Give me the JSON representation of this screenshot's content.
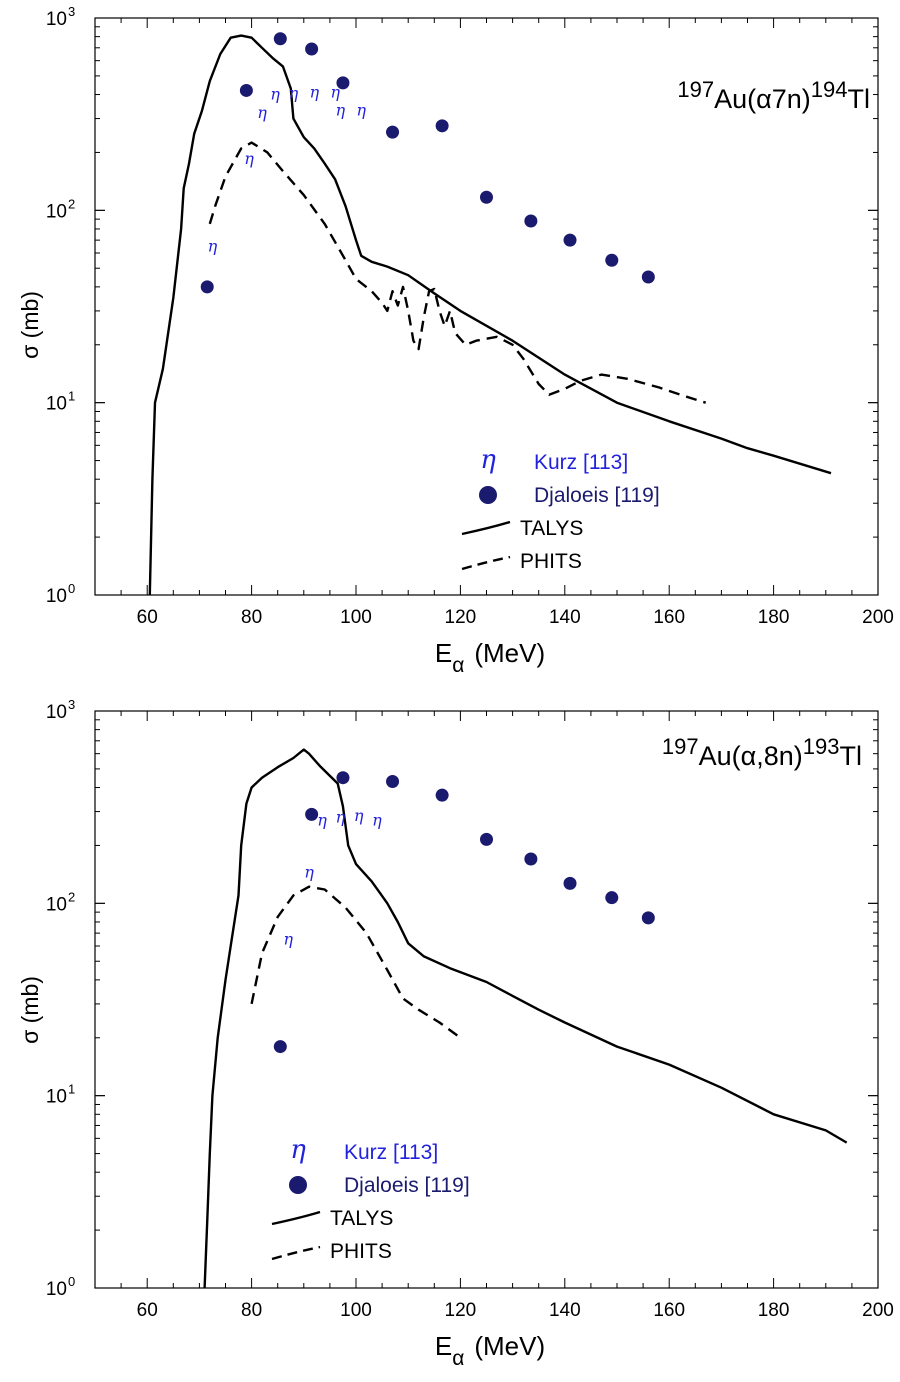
{
  "figure": {
    "xlabel": "E",
    "xlabel_sub": "α",
    "xlabel_unit": "(MeV)",
    "ylabel": "σ (mb)"
  },
  "chart_data": [
    {
      "type": "line",
      "title": {
        "pre": "197",
        "mid": "Au(α7n)",
        "post": "194",
        "tail": "Tl"
      },
      "xlabel": "E_α (MeV)",
      "ylabel": "σ (mb)",
      "xlim": [
        50,
        200
      ],
      "ylim": [
        1,
        1000
      ],
      "yscale": "log",
      "xticks": [
        "60",
        "80",
        "100",
        "120",
        "140",
        "160",
        "180",
        "200"
      ],
      "yticks": [
        {
          "base": "10",
          "exp": "0"
        },
        {
          "base": "10",
          "exp": "1"
        },
        {
          "base": "10",
          "exp": "2"
        },
        {
          "base": "10",
          "exp": "3"
        }
      ],
      "legend_position": "bottom-center",
      "legend": [
        {
          "label": "Kurz [113]",
          "marker": "η",
          "color": "#2222dd"
        },
        {
          "label": "Djaloeis [119]",
          "marker": "circle",
          "color": "#1a1a6e"
        },
        {
          "label": "TALYS",
          "style": "solid",
          "color": "#000000"
        },
        {
          "label": "PHITS",
          "style": "dashed",
          "color": "#000000"
        }
      ],
      "series": [
        {
          "name": "Kurz [113]",
          "kind": "symbol",
          "symbol": "η",
          "points": [
            [
              72.5,
              65
            ],
            [
              79.5,
              185
            ],
            [
              82,
              320
            ],
            [
              84.5,
              400
            ],
            [
              88,
              405
            ],
            [
              92,
              410
            ],
            [
              96,
              410
            ],
            [
              97,
              330
            ],
            [
              101,
              330
            ]
          ]
        },
        {
          "name": "Djaloeis [119]",
          "kind": "marker",
          "points": [
            [
              71.5,
              40
            ],
            [
              79,
              420
            ],
            [
              85.5,
              780
            ],
            [
              91.5,
              690
            ],
            [
              97.5,
              460
            ],
            [
              107,
              255
            ],
            [
              116.5,
              275
            ],
            [
              125,
              117
            ],
            [
              133.5,
              88
            ],
            [
              141,
              70
            ],
            [
              149,
              55
            ],
            [
              156,
              45
            ]
          ]
        },
        {
          "name": "TALYS",
          "kind": "line",
          "style": "solid",
          "points": [
            [
              60.5,
              1
            ],
            [
              61,
              4
            ],
            [
              61.5,
              10
            ],
            [
              63,
              15
            ],
            [
              65,
              35
            ],
            [
              66.5,
              80
            ],
            [
              67,
              130
            ],
            [
              68,
              175
            ],
            [
              69,
              250
            ],
            [
              70.5,
              330
            ],
            [
              72,
              470
            ],
            [
              74,
              650
            ],
            [
              76,
              790
            ],
            [
              78,
              810
            ],
            [
              80,
              790
            ],
            [
              82,
              700
            ],
            [
              84,
              620
            ],
            [
              86,
              560
            ],
            [
              87.5,
              430
            ],
            [
              88,
              300
            ],
            [
              90,
              240
            ],
            [
              92,
              210
            ],
            [
              94,
              175
            ],
            [
              96,
              145
            ],
            [
              98,
              105
            ],
            [
              100,
              70
            ],
            [
              101,
              58
            ],
            [
              103,
              54
            ],
            [
              106,
              51
            ],
            [
              110,
              46
            ],
            [
              115,
              37
            ],
            [
              120,
              30
            ],
            [
              130,
              21
            ],
            [
              140,
              14
            ],
            [
              150,
              10
            ],
            [
              160,
              8
            ],
            [
              170,
              6.5
            ],
            [
              175,
              5.8
            ],
            [
              180,
              5.3
            ],
            [
              191,
              4.3
            ]
          ]
        },
        {
          "name": "PHITS",
          "kind": "line",
          "style": "dashed",
          "points": [
            [
              72,
              85
            ],
            [
              73,
              105
            ],
            [
              75,
              150
            ],
            [
              78,
              210
            ],
            [
              80,
              225
            ],
            [
              83,
              200
            ],
            [
              86,
              160
            ],
            [
              90,
              120
            ],
            [
              94,
              85
            ],
            [
              98,
              55
            ],
            [
              100,
              44
            ],
            [
              103,
              38
            ],
            [
              105,
              33
            ],
            [
              106,
              30
            ],
            [
              107,
              38
            ],
            [
              108,
              32
            ],
            [
              109,
              40
            ],
            [
              110,
              30
            ],
            [
              111,
              21
            ],
            [
              112,
              19
            ],
            [
              113,
              28
            ],
            [
              114,
              38
            ],
            [
              115,
              39
            ],
            [
              116,
              30
            ],
            [
              117,
              25
            ],
            [
              118,
              30
            ],
            [
              119,
              23
            ],
            [
              121,
              20
            ],
            [
              123,
              21
            ],
            [
              127,
              22
            ],
            [
              130,
              20
            ],
            [
              132,
              17
            ],
            [
              135,
              12.5
            ],
            [
              137,
              11
            ],
            [
              140,
              11.8
            ],
            [
              143,
              13
            ],
            [
              147,
              14
            ],
            [
              152,
              13.3
            ],
            [
              158,
              12
            ],
            [
              163,
              10.8
            ],
            [
              167,
              10
            ]
          ]
        }
      ]
    },
    {
      "type": "line",
      "title": {
        "pre": "197",
        "mid": "Au(α,8n)",
        "post": "193",
        "tail": "Tl"
      },
      "xlabel": "E_α (MeV)",
      "ylabel": "σ (mb)",
      "xlim": [
        50,
        200
      ],
      "ylim": [
        1,
        1000
      ],
      "yscale": "log",
      "xticks": [
        "60",
        "80",
        "100",
        "120",
        "140",
        "160",
        "180",
        "200"
      ],
      "yticks": [
        {
          "base": "10",
          "exp": "0"
        },
        {
          "base": "10",
          "exp": "1"
        },
        {
          "base": "10",
          "exp": "2"
        },
        {
          "base": "10",
          "exp": "3"
        }
      ],
      "legend_position": "bottom-left",
      "legend": [
        {
          "label": "Kurz [113]",
          "marker": "η",
          "color": "#2222dd"
        },
        {
          "label": "Djaloeis [119]",
          "marker": "circle",
          "color": "#1a1a6e"
        },
        {
          "label": "TALYS",
          "style": "solid",
          "color": "#000000"
        },
        {
          "label": "PHITS",
          "style": "dashed",
          "color": "#000000"
        }
      ],
      "series": [
        {
          "name": "Kurz [113]",
          "kind": "symbol",
          "symbol": "η",
          "points": [
            [
              87,
              65
            ],
            [
              91,
              145
            ],
            [
              93.5,
              270
            ],
            [
              97,
              280
            ],
            [
              100.5,
              285
            ],
            [
              104,
              270
            ]
          ]
        },
        {
          "name": "Djaloeis [119]",
          "kind": "marker",
          "points": [
            [
              85.5,
              18
            ],
            [
              91.5,
              290
            ],
            [
              97.5,
              450
            ],
            [
              107,
              430
            ],
            [
              116.5,
              365
            ],
            [
              125,
              215
            ],
            [
              133.5,
              170
            ],
            [
              141,
              127
            ],
            [
              149,
              107
            ],
            [
              156,
              84
            ]
          ]
        },
        {
          "name": "TALYS",
          "kind": "line",
          "style": "solid",
          "points": [
            [
              71,
              1
            ],
            [
              71.5,
              2.2
            ],
            [
              72,
              5
            ],
            [
              72.5,
              10
            ],
            [
              73.5,
              20
            ],
            [
              75,
              40
            ],
            [
              76,
              60
            ],
            [
              77.5,
              110
            ],
            [
              78,
              200
            ],
            [
              79,
              330
            ],
            [
              80,
              400
            ],
            [
              82,
              450
            ],
            [
              85,
              510
            ],
            [
              88,
              570
            ],
            [
              90,
              630
            ],
            [
              91,
              600
            ],
            [
              93,
              520
            ],
            [
              95,
              460
            ],
            [
              96.5,
              420
            ],
            [
              97.5,
              320
            ],
            [
              98.5,
              200
            ],
            [
              100,
              160
            ],
            [
              103,
              130
            ],
            [
              106,
              100
            ],
            [
              108,
              80
            ],
            [
              110,
              62
            ],
            [
              113,
              53
            ],
            [
              118,
              46
            ],
            [
              125,
              39
            ],
            [
              130,
              33
            ],
            [
              135,
              28
            ],
            [
              140,
              24
            ],
            [
              150,
              18
            ],
            [
              160,
              14.5
            ],
            [
              170,
              11
            ],
            [
              180,
              8
            ],
            [
              190,
              6.6
            ],
            [
              194,
              5.7
            ]
          ]
        },
        {
          "name": "PHITS",
          "kind": "line",
          "style": "dashed",
          "points": [
            [
              80,
              30
            ],
            [
              82,
              55
            ],
            [
              85,
              85
            ],
            [
              88,
              110
            ],
            [
              91,
              122
            ],
            [
              94,
              118
            ],
            [
              98,
              95
            ],
            [
              102,
              70
            ],
            [
              106,
              45
            ],
            [
              109,
              32
            ],
            [
              112,
              28
            ],
            [
              116,
              24
            ],
            [
              120,
              20
            ]
          ]
        }
      ]
    }
  ]
}
